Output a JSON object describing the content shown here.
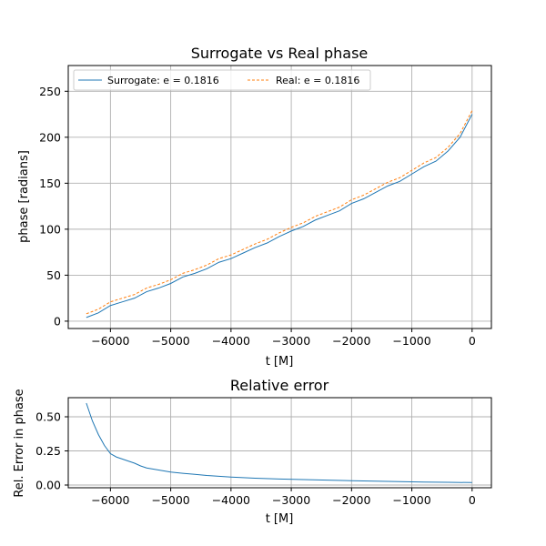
{
  "chart_data": [
    {
      "type": "line",
      "title": "Surrogate vs Real phase",
      "xlabel": "t [M]",
      "ylabel": "phase [radians]",
      "xlim": [
        -6700,
        320
      ],
      "ylim": [
        -8,
        278
      ],
      "xticks": [
        -6000,
        -5000,
        -4000,
        -3000,
        -2000,
        -1000,
        0
      ],
      "xtick_labels": [
        "−6000",
        "−5000",
        "−4000",
        "−3000",
        "−2000",
        "−1000",
        "0"
      ],
      "yticks": [
        0,
        50,
        100,
        150,
        200,
        250
      ],
      "ytick_labels": [
        "0",
        "50",
        "100",
        "150",
        "200",
        "250"
      ],
      "grid": true,
      "legend_position": "top-left",
      "series": [
        {
          "name": "Surrogate: e = 0.1816",
          "color": "#1f77b4",
          "style": "solid",
          "x": [
            -6400,
            -6200,
            -6000,
            -5800,
            -5600,
            -5400,
            -5200,
            -5000,
            -4800,
            -4600,
            -4400,
            -4200,
            -4000,
            -3800,
            -3600,
            -3400,
            -3200,
            -3000,
            -2800,
            -2600,
            -2400,
            -2200,
            -2000,
            -1800,
            -1600,
            -1400,
            -1200,
            -1000,
            -800,
            -600,
            -400,
            -200,
            0
          ],
          "y": [
            4,
            9,
            17,
            21,
            25,
            32,
            36,
            41,
            48,
            52,
            57,
            64,
            68,
            74,
            80,
            85,
            92,
            98,
            103,
            110,
            115,
            120,
            128,
            133,
            140,
            147,
            152,
            160,
            168,
            174,
            185,
            200,
            225
          ]
        },
        {
          "name": "Real: e = 0.1816",
          "color": "#ff7f0e",
          "style": "dashed",
          "x": [
            -6400,
            -6200,
            -6000,
            -5800,
            -5600,
            -5400,
            -5200,
            -5000,
            -4800,
            -4600,
            -4400,
            -4200,
            -4000,
            -3800,
            -3600,
            -3400,
            -3200,
            -3000,
            -2800,
            -2600,
            -2400,
            -2200,
            -2000,
            -1800,
            -1600,
            -1400,
            -1200,
            -1000,
            -800,
            -600,
            -400,
            -200,
            0
          ],
          "y": [
            8,
            13,
            21,
            25,
            29,
            36,
            40,
            45,
            52,
            56,
            61,
            68,
            72,
            78,
            84,
            89,
            96,
            102,
            107,
            114,
            119,
            124,
            132,
            137,
            144,
            151,
            156,
            164,
            172,
            178,
            189,
            204,
            229
          ]
        }
      ]
    },
    {
      "type": "line",
      "title": "Relative error",
      "xlabel": "t [M]",
      "ylabel": "Rel. Error in phase",
      "xlim": [
        -6700,
        320
      ],
      "ylim": [
        -0.02,
        0.64
      ],
      "xticks": [
        -6000,
        -5000,
        -4000,
        -3000,
        -2000,
        -1000,
        0
      ],
      "xtick_labels": [
        "−6000",
        "−5000",
        "−4000",
        "−3000",
        "−2000",
        "−1000",
        "0"
      ],
      "yticks": [
        0,
        0.25,
        0.5
      ],
      "ytick_labels": [
        "0.00",
        "0.25",
        "0.50"
      ],
      "grid": true,
      "series": [
        {
          "color": "#1f77b4",
          "style": "solid",
          "x": [
            -6400,
            -6300,
            -6200,
            -6100,
            -6000,
            -5900,
            -5800,
            -5700,
            -5600,
            -5500,
            -5400,
            -5200,
            -5000,
            -4800,
            -4600,
            -4400,
            -4200,
            -4000,
            -3600,
            -3200,
            -2800,
            -2400,
            -2000,
            -1600,
            -1200,
            -800,
            -400,
            0
          ],
          "y": [
            0.6,
            0.47,
            0.37,
            0.29,
            0.23,
            0.205,
            0.19,
            0.175,
            0.16,
            0.14,
            0.125,
            0.11,
            0.095,
            0.086,
            0.078,
            0.07,
            0.064,
            0.058,
            0.05,
            0.044,
            0.04,
            0.036,
            0.032,
            0.028,
            0.025,
            0.022,
            0.02,
            0.018
          ]
        }
      ]
    }
  ]
}
